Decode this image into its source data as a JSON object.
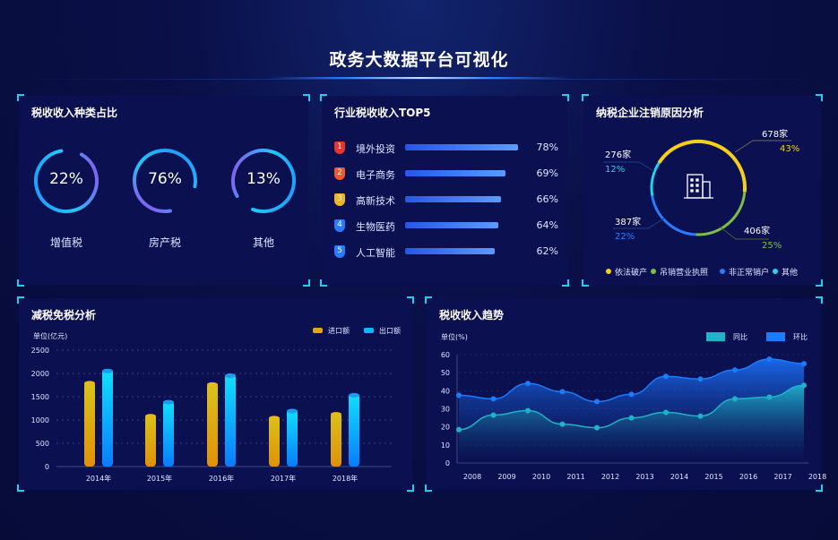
{
  "header": {
    "title": "政务大数据平台可视化"
  },
  "colors": {
    "panel": "#0b1150",
    "accent": "#19d2f2",
    "yellow": "#f5cf1c",
    "green": "#7bc043",
    "blue": "#2a7cff",
    "cyan": "#22d6f0"
  },
  "tax_types": {
    "title": "税收收入种类占比",
    "items": [
      {
        "value": "22%",
        "label": "增值税"
      },
      {
        "value": "76%",
        "label": "房产税"
      },
      {
        "value": "13%",
        "label": "其他"
      }
    ]
  },
  "top5": {
    "title": "行业税收收入TOP5",
    "items": [
      {
        "rank": "1",
        "name": "境外投资",
        "value": 78,
        "pct": "78%",
        "color": "#e8352c"
      },
      {
        "rank": "2",
        "name": "电子商务",
        "value": 69,
        "pct": "69%",
        "color": "#f0582a"
      },
      {
        "rank": "3",
        "name": "高新技术",
        "value": 66,
        "pct": "66%",
        "color": "#f0b429"
      },
      {
        "rank": "4",
        "name": "生物医药",
        "value": 64,
        "pct": "64%",
        "color": "#2a7cff"
      },
      {
        "rank": "5",
        "name": "人工智能",
        "value": 62,
        "pct": "62%",
        "color": "#2a7cff"
      }
    ]
  },
  "deregistration": {
    "title": "纳税企业注销原因分析",
    "icon": "building-icon",
    "segments": [
      {
        "name": "依法破产",
        "count": "678家",
        "pct": "43%",
        "value": 43,
        "color": "#f5cf1c"
      },
      {
        "name": "吊销营业执照",
        "count": "406家",
        "pct": "25%",
        "value": 25,
        "color": "#7bc043"
      },
      {
        "name": "非正常销户",
        "count": "387家",
        "pct": "22%",
        "value": 22,
        "color": "#2a7cff"
      },
      {
        "name": "其他",
        "count": "276家",
        "pct": "12%",
        "value": 12,
        "color": "#22d6f0"
      }
    ]
  },
  "chart_data": [
    {
      "type": "bar",
      "title": "减税免税分析",
      "ylabel": "单位(亿元)",
      "ylim": [
        0,
        2500
      ],
      "yticks": [
        "0",
        "500",
        "1000",
        "1500",
        "2000",
        "2500"
      ],
      "categories": [
        "2014年",
        "2015年",
        "2016年",
        "2017年",
        "2018年"
      ],
      "grid": true,
      "legend": "top-right",
      "series": [
        {
          "name": "进口额",
          "values": [
            1830,
            1120,
            1800,
            1080,
            1160
          ],
          "color": "#e0a80e"
        },
        {
          "name": "出口额",
          "values": [
            2090,
            1420,
            1990,
            1230,
            1570
          ],
          "color": "#0fb8ff"
        }
      ]
    },
    {
      "type": "area",
      "title": "税收收入趋势",
      "ylabel": "单位(%)",
      "ylim": [
        0,
        60
      ],
      "yticks": [
        "0",
        "10",
        "20",
        "30",
        "40",
        "50",
        "60"
      ],
      "categories": [
        "2008",
        "2009",
        "2010",
        "2011",
        "2012",
        "2013",
        "2014",
        "2015",
        "2016",
        "2017",
        "2018"
      ],
      "legend": "top-right",
      "series": [
        {
          "name": "同比",
          "values": [
            18.5,
            26.5,
            29,
            21.5,
            19.5,
            25,
            28,
            26,
            35.5,
            36.5,
            43
          ],
          "color": "#1fb3c9"
        },
        {
          "name": "环比",
          "values": [
            37.5,
            35.5,
            44,
            39.5,
            34,
            38,
            48,
            46.5,
            51.5,
            57.5,
            55
          ],
          "color": "#1a7cff"
        }
      ]
    }
  ]
}
